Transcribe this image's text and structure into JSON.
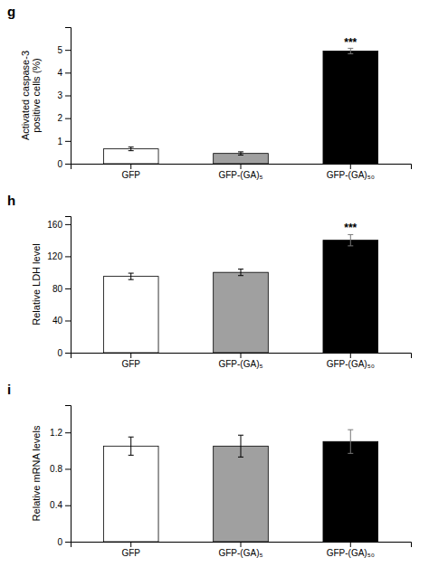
{
  "chart_data": [
    {
      "type": "bar",
      "title": "g",
      "ylabel": "Activated caspase-3\npositive cells (%)",
      "categories": [
        "GFP",
        "GFP-(GA)₅",
        "GFP-(GA)₅₀"
      ],
      "values": [
        0.65,
        0.45,
        4.95
      ],
      "errors": [
        0.08,
        0.07,
        0.12
      ],
      "colors": [
        "#ffffff",
        "#a0a0a0",
        "#000000"
      ],
      "ylim": [
        0,
        6
      ],
      "yticks": [
        0,
        1,
        2,
        3,
        4,
        5
      ],
      "annotations": [
        {
          "text": "***",
          "category": "GFP-(GA)₅₀",
          "y": 5.15
        }
      ]
    },
    {
      "type": "bar",
      "title": "h",
      "ylabel": "Relative LDH level",
      "categories": [
        "GFP",
        "GFP-(GA)₅",
        "GFP-(GA)₅₀"
      ],
      "values": [
        95,
        100,
        140
      ],
      "errors": [
        4,
        4,
        7
      ],
      "colors": [
        "#ffffff",
        "#a0a0a0",
        "#000000"
      ],
      "ylim": [
        0,
        170
      ],
      "yticks": [
        0,
        40,
        80,
        120,
        160
      ],
      "annotations": [
        {
          "text": "***",
          "category": "GFP-(GA)₅₀",
          "y": 151
        }
      ]
    },
    {
      "type": "bar",
      "title": "i",
      "ylabel": "Relative mRNA levels",
      "categories": [
        "GFP",
        "GFP-(GA)₅",
        "GFP-(GA)₅₀"
      ],
      "values": [
        1.05,
        1.05,
        1.1
      ],
      "errors": [
        0.1,
        0.12,
        0.13
      ],
      "colors": [
        "#ffffff",
        "#a0a0a0",
        "#000000"
      ],
      "ylim": [
        0,
        1.5
      ],
      "yticks": [
        0,
        0.4,
        0.8,
        1.2
      ]
    }
  ]
}
